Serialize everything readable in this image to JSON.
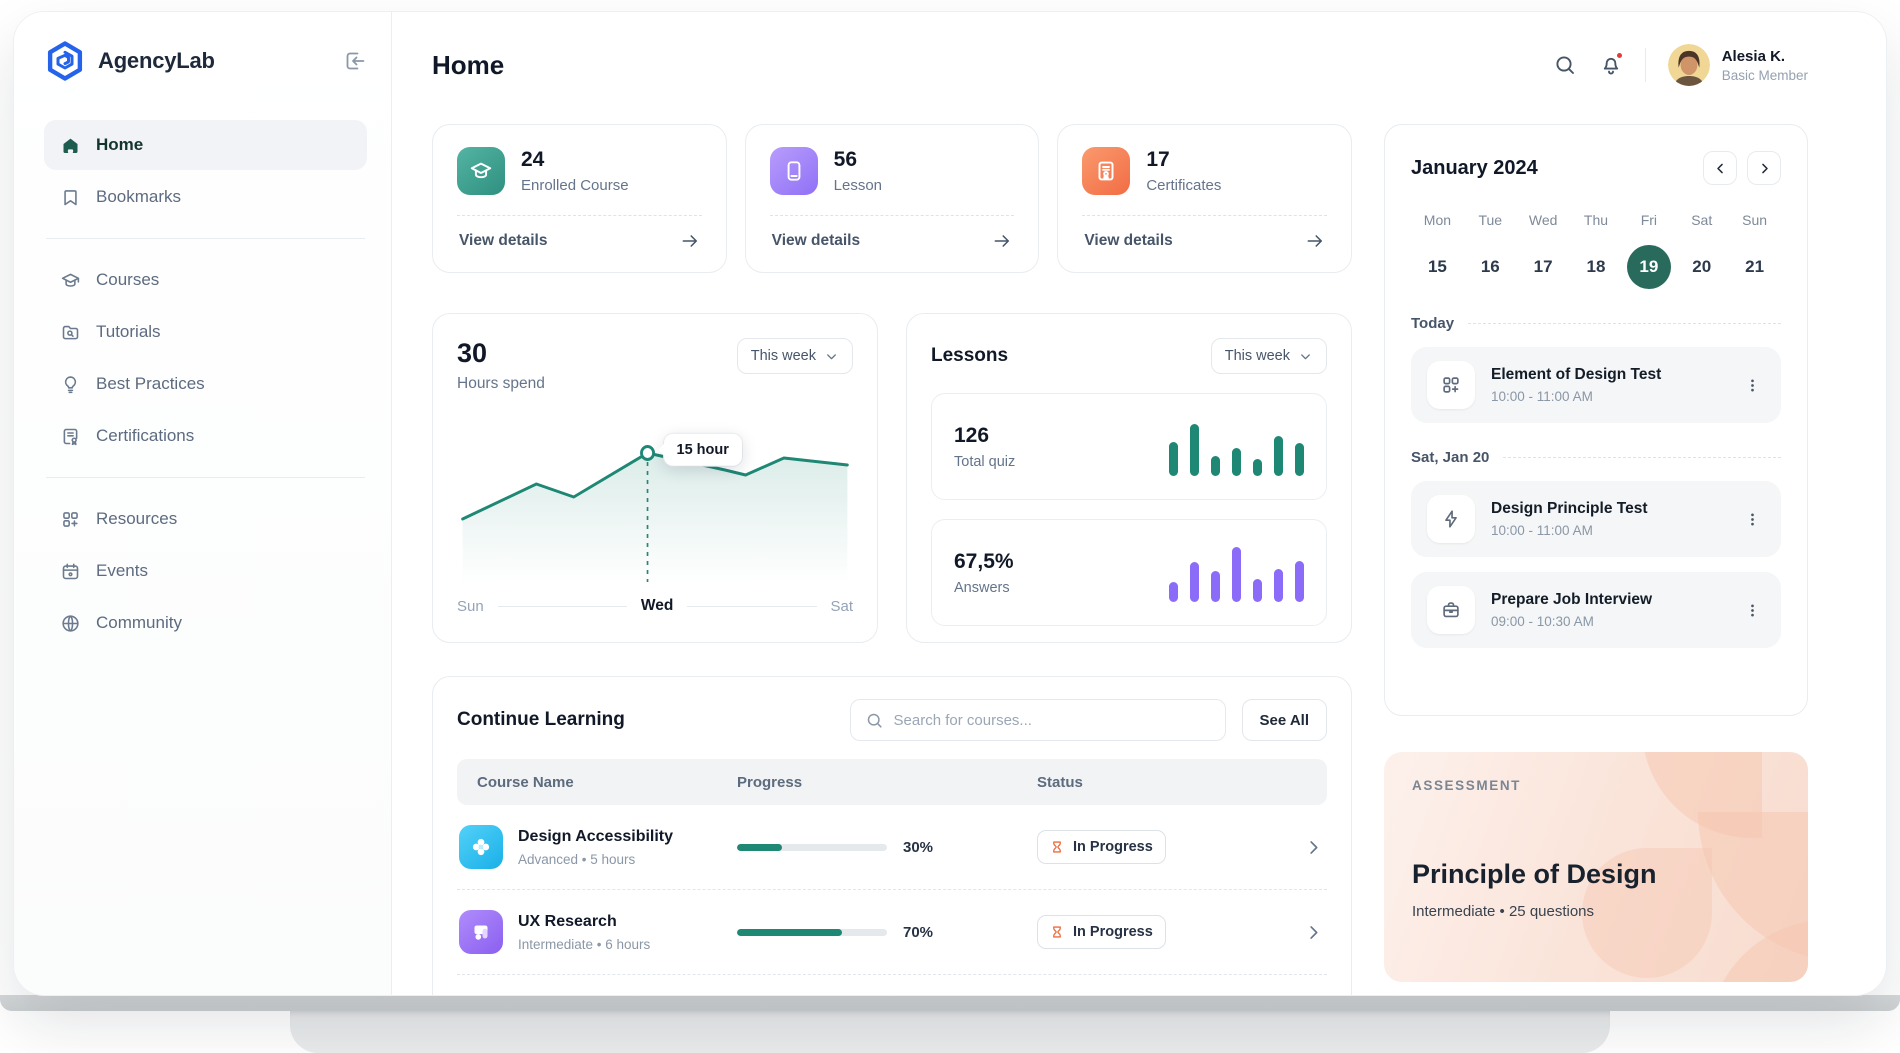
{
  "app": {
    "name": "AgencyLab"
  },
  "page_title": "Home",
  "sidebar": {
    "items": [
      {
        "label": "Home"
      },
      {
        "label": "Bookmarks"
      },
      {
        "label": "Courses"
      },
      {
        "label": "Tutorials"
      },
      {
        "label": "Best Practices"
      },
      {
        "label": "Certifications"
      },
      {
        "label": "Resources"
      },
      {
        "label": "Events"
      },
      {
        "label": "Community"
      }
    ]
  },
  "header": {
    "user_name": "Alesia K.",
    "user_role": "Basic Member"
  },
  "stats": [
    {
      "value": "24",
      "label": "Enrolled Course",
      "link": "View details"
    },
    {
      "value": "56",
      "label": "Lesson",
      "link": "View details"
    },
    {
      "value": "17",
      "label": "Certificates",
      "link": "View details"
    }
  ],
  "hours": {
    "value": "30",
    "label": "Hours spend",
    "range": "This week",
    "tooltip": "15 hour",
    "x_labels": [
      "Sun",
      "Wed",
      "Sat"
    ],
    "points": [
      [
        6,
        86
      ],
      [
        85,
        51
      ],
      [
        125,
        64
      ],
      [
        204,
        20
      ],
      [
        287,
        37
      ],
      [
        309,
        42
      ],
      [
        350,
        25
      ],
      [
        418,
        32
      ]
    ],
    "marker_index": 3
  },
  "lessons": {
    "title": "Lessons",
    "range": "This week",
    "quiz": {
      "value": "126",
      "label": "Total quiz",
      "bars": [
        34,
        52,
        20,
        28,
        17,
        40,
        33
      ]
    },
    "answers": {
      "value": "67,5%",
      "label": "Answers",
      "bars": [
        20,
        40,
        31,
        55,
        23,
        33,
        41
      ]
    }
  },
  "continue_learning": {
    "title": "Continue Learning",
    "search_placeholder": "Search for courses...",
    "see_all": "See All",
    "columns": [
      "Course Name",
      "Progress",
      "Status"
    ],
    "rows": [
      {
        "name": "Design Accessibility",
        "meta": "Advanced  •  5 hours",
        "progress": 30,
        "progress_label": "30%",
        "status": "In Progress"
      },
      {
        "name": "UX Research",
        "meta": "Intermediate  •  6 hours",
        "progress": 70,
        "progress_label": "70%",
        "status": "In Progress"
      }
    ]
  },
  "calendar": {
    "month": "January 2024",
    "day_names": [
      "Mon",
      "Tue",
      "Wed",
      "Thu",
      "Fri",
      "Sat",
      "Sun"
    ],
    "dates": [
      "15",
      "16",
      "17",
      "18",
      "19",
      "20",
      "21"
    ],
    "selected_index": 4
  },
  "schedule": {
    "groups": [
      {
        "label": "Today",
        "events": [
          {
            "title": "Element of Design Test",
            "time": "10:00 - 11:00 AM",
            "icon": "grid-plus-icon"
          }
        ]
      },
      {
        "label": "Sat, Jan 20",
        "events": [
          {
            "title": "Design Principle Test",
            "time": "10:00 - 11:00 AM",
            "icon": "lightning-icon"
          },
          {
            "title": "Prepare Job Interview",
            "time": "09:00 - 10:30 AM",
            "icon": "briefcase-icon"
          }
        ]
      }
    ]
  },
  "assessment": {
    "tag": "ASSESSMENT",
    "title": "Principle of Design",
    "meta": "Intermediate  •  25 questions"
  },
  "colors": {
    "accent_teal": "#1e8875",
    "accent_purple": "#8b6cf8",
    "accent_orange": "#f26c44",
    "selected_day": "#286a5b",
    "alert_red": "#e23c3c"
  }
}
